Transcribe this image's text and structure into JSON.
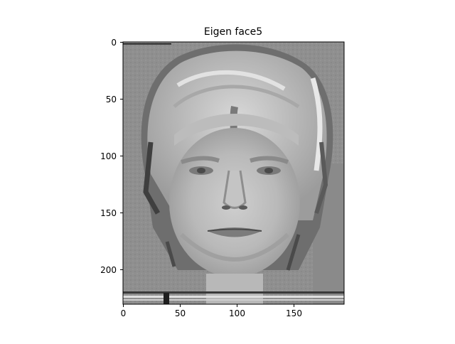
{
  "figure": {
    "title": "Eigen face5",
    "image_description": "grayscale eigenface image of a human face",
    "colormap": "gray"
  },
  "axes": {
    "x_ticks": [
      "0",
      "50",
      "100",
      "150"
    ],
    "y_ticks": [
      "0",
      "50",
      "100",
      "150",
      "200"
    ],
    "x_range": [
      0,
      195
    ],
    "y_range": [
      0,
      231
    ]
  }
}
